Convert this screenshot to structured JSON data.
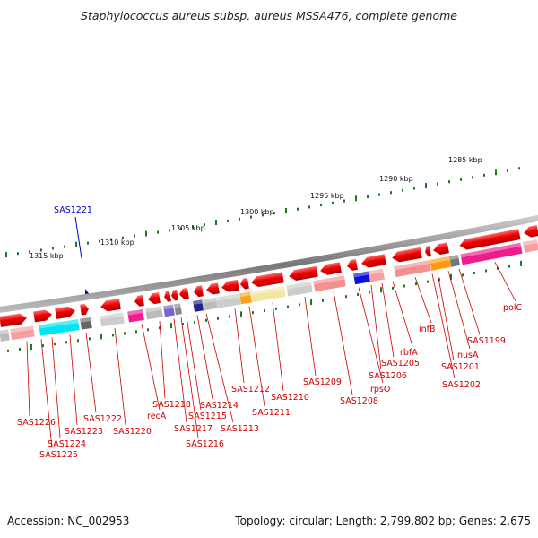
{
  "title": "Staphylococcus aureus subsp. aureus MSSA476, complete genome",
  "footer": {
    "accession": "Accession: NC_002953",
    "topology": "Topology: circular; Length: 2,799,802 bp; Genes: 2,675"
  },
  "scale_labels": [
    "1285 kbp",
    "1290 kbp",
    "1295 kbp",
    "1300 kbp",
    "1305 kbp",
    "1310 kbp",
    "1315 kbp"
  ],
  "highlight_gene": {
    "label": "SAS1221",
    "color": "#0000cc"
  },
  "gene_labels": [
    "polC",
    "SAS1199",
    "nusA",
    "SAS1201",
    "SAS1202",
    "infB",
    "rbfA",
    "SAS1205",
    "SAS1206",
    "rpsO",
    "SAS1208",
    "SAS1209",
    "SAS1210",
    "SAS1211",
    "SAS1212",
    "SAS1213",
    "SAS1214",
    "SAS1215",
    "SAS1216",
    "SAS1217",
    "SAS1218",
    "recA",
    "SAS1220",
    "SAS1222",
    "SAS1223",
    "SAS1224",
    "SAS1225",
    "SAS1226"
  ],
  "colors": {
    "gene": "#ee0000",
    "backbone": "#888888",
    "ticks": "#1a7a1a",
    "label": "#cc0000"
  }
}
